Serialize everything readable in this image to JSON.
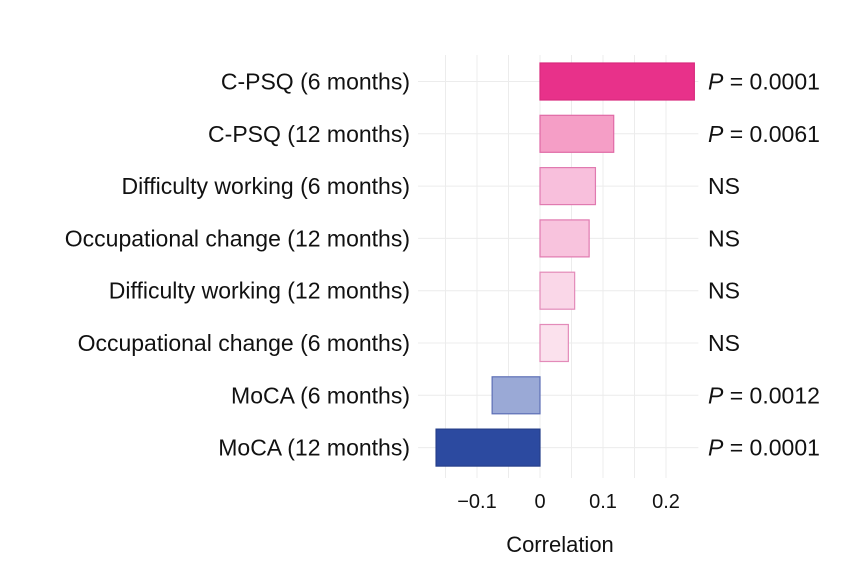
{
  "chart_data": {
    "type": "bar",
    "orientation": "horizontal",
    "title": "",
    "xlabel": "Correlation",
    "ylabel": "",
    "xlim": [
      -0.165,
      0.245
    ],
    "xticks": [
      -0.1,
      0,
      0.1,
      0.2
    ],
    "xtick_labels": [
      "−0.1",
      "0",
      "0.1",
      "0.2"
    ],
    "grid": true,
    "categories": [
      "C-PSQ (6 months)",
      "C-PSQ (12 months)",
      "Difficulty working (6 months)",
      "Occupational change (12 months)",
      "Difficulty working (12 months)",
      "Occupational change (6 months)",
      "MoCA (6 months)",
      "MoCA (12 months)"
    ],
    "values": [
      0.245,
      0.117,
      0.088,
      0.078,
      0.055,
      0.045,
      -0.076,
      -0.165
    ],
    "fill_colors": [
      "#e8318a",
      "#f59ec6",
      "#f8bfdc",
      "#f8c3dd",
      "#fad7e8",
      "#fbe1ed",
      "#9aa9d6",
      "#2c4aa0"
    ],
    "stroke_colors": [
      "#d92a7d",
      "#e06aa6",
      "#e07ab0",
      "#e07ab0",
      "#e38bb9",
      "#e38bb9",
      "#5d6fb6",
      "#263f8a"
    ],
    "annotations": [
      {
        "p_label": "P",
        "eq": " = 0.0001"
      },
      {
        "p_label": "P",
        "eq": " = 0.0061"
      },
      {
        "p_label": "",
        "eq": "NS"
      },
      {
        "p_label": "",
        "eq": "NS"
      },
      {
        "p_label": "",
        "eq": "NS"
      },
      {
        "p_label": "",
        "eq": "NS"
      },
      {
        "p_label": "P",
        "eq": " = 0.0012"
      },
      {
        "p_label": "P",
        "eq": " = 0.0001"
      }
    ]
  }
}
